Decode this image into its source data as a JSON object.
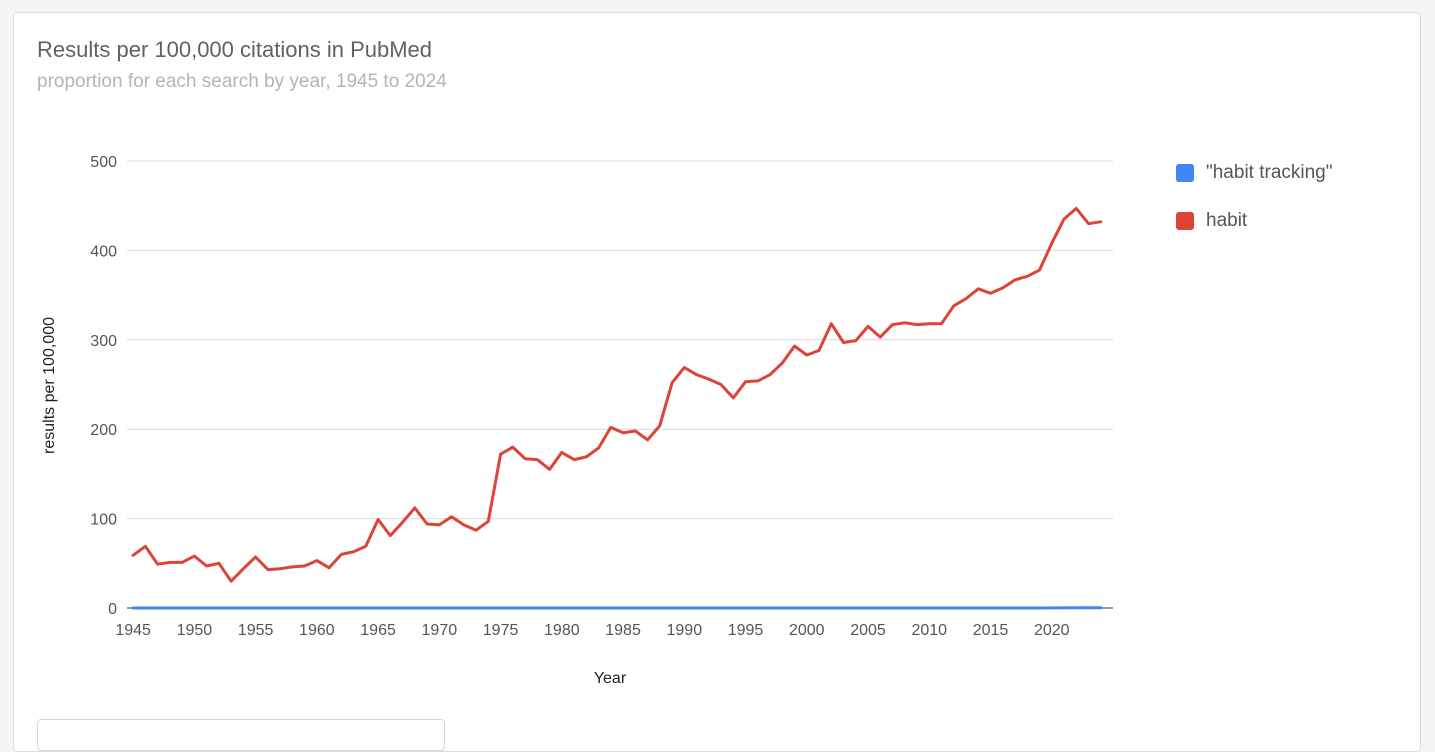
{
  "chart_title": "Results per 100,000 citations in PubMed",
  "chart_subtitle": "proportion for each search by year, 1945 to 2024",
  "legend": [
    {
      "label": "\"habit tracking\"",
      "color": "#4285f4"
    },
    {
      "label": "habit",
      "color": "#db4437"
    }
  ],
  "chart_data": {
    "type": "line",
    "title": "Results per 100,000 citations in PubMed",
    "subtitle": "proportion for each search by year, 1945 to 2024",
    "xlabel": "Year",
    "ylabel": "results per 100,000",
    "xlim": [
      1944.5,
      2025
    ],
    "ylim": [
      0,
      500
    ],
    "grid": true,
    "legend_position": "right",
    "x_ticks": [
      1945,
      1950,
      1955,
      1960,
      1965,
      1970,
      1975,
      1980,
      1985,
      1990,
      1995,
      2000,
      2005,
      2010,
      2015,
      2020
    ],
    "y_ticks": [
      0,
      100,
      200,
      300,
      400,
      500
    ],
    "x": [
      1945,
      1946,
      1947,
      1948,
      1949,
      1950,
      1951,
      1952,
      1953,
      1954,
      1955,
      1956,
      1957,
      1958,
      1959,
      1960,
      1961,
      1962,
      1963,
      1964,
      1965,
      1966,
      1967,
      1968,
      1969,
      1970,
      1971,
      1972,
      1973,
      1974,
      1975,
      1976,
      1977,
      1978,
      1979,
      1980,
      1981,
      1982,
      1983,
      1984,
      1985,
      1986,
      1987,
      1988,
      1989,
      1990,
      1991,
      1992,
      1993,
      1994,
      1995,
      1996,
      1997,
      1998,
      1999,
      2000,
      2001,
      2002,
      2003,
      2004,
      2005,
      2006,
      2007,
      2008,
      2009,
      2010,
      2011,
      2012,
      2013,
      2014,
      2015,
      2016,
      2017,
      2018,
      2019,
      2020,
      2021,
      2022,
      2023,
      2024
    ],
    "series": [
      {
        "name": "\"habit tracking\"",
        "color": "#4285f4",
        "values": [
          0,
          0,
          0,
          0,
          0,
          0,
          0,
          0,
          0,
          0,
          0,
          0,
          0,
          0,
          0,
          0,
          0,
          0,
          0,
          0,
          0,
          0,
          0,
          0,
          0,
          0,
          0,
          0,
          0,
          0,
          0,
          0,
          0,
          0,
          0,
          0,
          0,
          0,
          0,
          0,
          0,
          0,
          0,
          0,
          0,
          0,
          0,
          0,
          0,
          0,
          0,
          0,
          0,
          0,
          0,
          0,
          0,
          0,
          0,
          0,
          0,
          0,
          0,
          0,
          0,
          0,
          0,
          0,
          0,
          0,
          0,
          0,
          0,
          0,
          0,
          0.1,
          0.1,
          0.2,
          0.2,
          0.2
        ]
      },
      {
        "name": "habit",
        "color": "#db4437",
        "values": [
          59,
          69,
          49,
          51,
          51,
          58,
          47,
          50,
          30,
          44,
          57,
          43,
          44,
          46,
          47,
          53,
          45,
          60,
          63,
          69,
          99,
          81,
          96,
          112,
          94,
          93,
          102,
          93,
          87,
          97,
          172,
          180,
          167,
          166,
          155,
          174,
          166,
          169,
          179,
          202,
          196,
          198,
          188,
          204,
          252,
          269,
          261,
          256,
          250,
          235,
          253,
          254,
          261,
          274,
          293,
          283,
          288,
          318,
          297,
          299,
          315,
          303,
          317,
          319,
          317,
          318,
          318,
          338,
          346,
          357,
          352,
          358,
          367,
          371,
          378,
          408,
          435,
          447,
          430,
          432
        ]
      }
    ]
  }
}
